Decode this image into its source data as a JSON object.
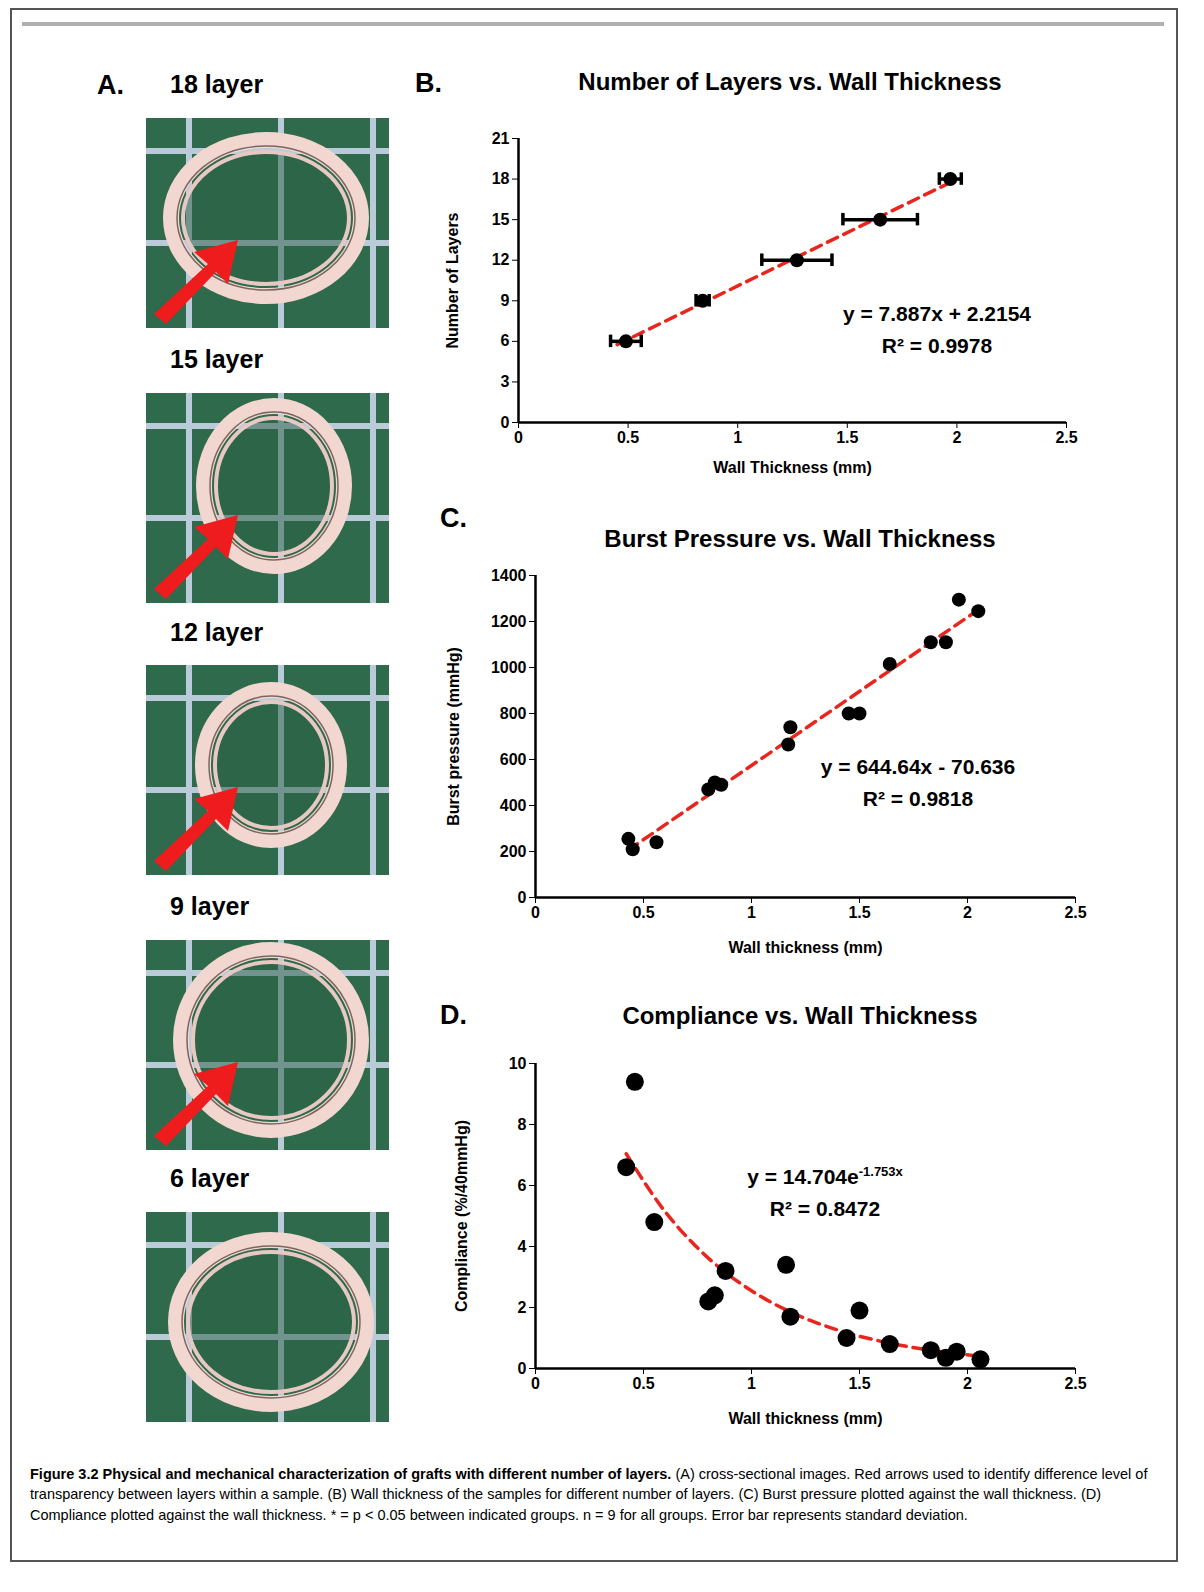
{
  "figure": {
    "caption_title": "Figure 3.2 Physical and mechanical characterization of grafts with different number of layers.",
    "caption_text": "(A) cross-sectional images. Red arrows used to identify difference level of transparency between layers within a sample. (B) Wall thickness of the samples for different number of layers. (C) Burst pressure plotted against the wall thickness. (D) Compliance plotted against the wall thickness. * = p < 0.05 between indicated groups. n = 9 for all groups. Error bar represents standard deviation."
  },
  "panel_a": {
    "letter": "A.",
    "labels": [
      "18 layer",
      "15 layer",
      "12 layer",
      "9 layer",
      "6 layer"
    ]
  },
  "chart_data": [
    {
      "panel": "B.",
      "type": "scatter",
      "title": "Number of Layers vs. Wall Thickness",
      "x_label": "Wall Thickness (mm)",
      "y_label": "Number of Layers",
      "x": [
        0.49,
        0.84,
        1.27,
        1.65,
        1.97
      ],
      "values": [
        6,
        9,
        12,
        15,
        18
      ],
      "x_error": [
        0.07,
        0.03,
        0.16,
        0.17,
        0.05
      ],
      "color": "#000000",
      "marker": "circle",
      "trendline": {
        "x": [
          0.45,
          1.98
        ],
        "values": [
          5.76,
          17.83
        ],
        "color": "#e8261e",
        "line_style": "dashed"
      },
      "annotations": [
        [
          "y = 7.887x + 2.2154"
        ],
        [
          "R² = 0.9978"
        ]
      ],
      "xlim": [
        0,
        2.5
      ],
      "xticks": [
        0,
        0.5,
        1,
        1.5,
        2,
        2.5
      ],
      "ylim": [
        0,
        21
      ],
      "yticks": [
        0,
        3,
        6,
        9,
        12,
        15,
        18,
        21
      ]
    },
    {
      "panel": "C.",
      "type": "scatter",
      "title": "Burst Pressure vs. Wall Thickness",
      "x_label": "Wall thickness (mm)",
      "y_label": "Burst pressure (mmHg)",
      "x": [
        0.43,
        0.45,
        0.56,
        0.8,
        0.83,
        0.86,
        1.17,
        1.18,
        1.45,
        1.5,
        1.64,
        1.83,
        1.9,
        1.96,
        2.05
      ],
      "values": [
        255,
        210,
        240,
        470,
        500,
        490,
        665,
        740,
        800,
        800,
        1015,
        1110,
        1110,
        1295,
        1245
      ],
      "color": "#000000",
      "marker": "circle",
      "trendline": {
        "x": [
          0.43,
          2.03
        ],
        "values": [
          206.6,
          1238
        ],
        "color": "#e8261e",
        "line_style": "dashed"
      },
      "annotations": [
        [
          "y = 644.64x - 70.636"
        ],
        [
          "R² = 0.9818"
        ]
      ],
      "xlim": [
        0,
        2.5
      ],
      "xticks": [
        0,
        0.5,
        1,
        1.5,
        2,
        2.5
      ],
      "ylim": [
        0,
        1400
      ],
      "yticks": [
        0,
        200,
        400,
        600,
        800,
        1000,
        1200,
        1400
      ]
    },
    {
      "panel": "D.",
      "type": "scatter",
      "title": "Compliance vs. Wall Thickness",
      "x_label": "Wall thickness (mm)",
      "y_label": "Compliance (%/40mmHg)",
      "x": [
        0.42,
        0.46,
        0.55,
        0.8,
        0.83,
        0.88,
        1.16,
        1.18,
        1.44,
        1.5,
        1.64,
        1.83,
        1.9,
        1.95,
        2.06
      ],
      "values": [
        6.6,
        9.4,
        4.8,
        2.2,
        2.4,
        3.2,
        3.4,
        1.7,
        1.0,
        1.9,
        0.8,
        0.6,
        0.35,
        0.55,
        0.3
      ],
      "color": "#000000",
      "marker": "circle",
      "trendline": {
        "x": [
          0.42,
          0.6,
          0.8,
          1.0,
          1.2,
          1.4,
          1.6,
          1.8,
          2.06
        ],
        "values": [
          7.04,
          5.14,
          3.62,
          2.55,
          1.79,
          1.26,
          0.89,
          0.63,
          0.4
        ],
        "color": "#e8261e",
        "line_style": "dashed"
      },
      "annotations": [
        [
          "y = 14.704e",
          "-1.753x"
        ],
        [
          "R² = 0.8472"
        ]
      ],
      "xlim": [
        0,
        2.5
      ],
      "xticks": [
        0,
        0.5,
        1,
        1.5,
        2,
        2.5
      ],
      "ylim": [
        0,
        10
      ],
      "yticks": [
        0,
        2,
        4,
        6,
        8,
        10
      ]
    }
  ]
}
